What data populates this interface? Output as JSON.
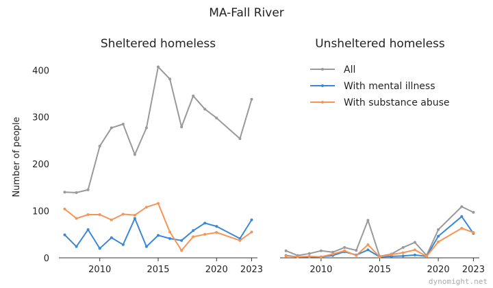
{
  "suptitle": "MA-Fall River",
  "watermark": "dynomight.net",
  "chart_data": [
    {
      "type": "line",
      "title": "Sheltered homeless",
      "xlabel": "",
      "ylabel": "Number of people",
      "xlim": [
        2006.5,
        2023.5
      ],
      "ylim": [
        0,
        415
      ],
      "xticks": [
        2010,
        2015,
        2020,
        2023
      ],
      "yticks": [
        0,
        100,
        200,
        300,
        400
      ],
      "grid": false,
      "x": [
        2007,
        2008,
        2009,
        2010,
        2011,
        2012,
        2013,
        2014,
        2015,
        2016,
        2017,
        2018,
        2019,
        2020,
        2022,
        2023
      ],
      "series": [
        {
          "name": "All",
          "color": "#999999",
          "values": [
            140,
            139,
            145,
            238,
            277,
            285,
            220,
            277,
            407,
            381,
            279,
            345,
            317,
            298,
            254,
            338
          ]
        },
        {
          "name": "With mental illness",
          "color": "#3a87d6",
          "values": [
            49,
            24,
            60,
            20,
            43,
            28,
            84,
            24,
            48,
            41,
            37,
            58,
            74,
            67,
            41,
            81
          ]
        },
        {
          "name": "With substance abuse",
          "color": "#f79454",
          "values": [
            104,
            84,
            92,
            92,
            81,
            93,
            91,
            108,
            116,
            55,
            16,
            45,
            50,
            54,
            37,
            55
          ]
        }
      ]
    },
    {
      "type": "line",
      "title": "Unsheltered homeless",
      "xlabel": "",
      "ylabel": "",
      "xlim": [
        2006.5,
        2023.5
      ],
      "ylim": [
        0,
        415
      ],
      "xticks": [
        2010,
        2015,
        2020,
        2023
      ],
      "grid": false,
      "legend": "top",
      "x": [
        2007,
        2008,
        2009,
        2010,
        2011,
        2012,
        2013,
        2014,
        2015,
        2016,
        2017,
        2018,
        2019,
        2020,
        2022,
        2023
      ],
      "series": [
        {
          "name": "All",
          "color": "#999999",
          "values": [
            15,
            5,
            9,
            15,
            12,
            22,
            16,
            80,
            3,
            8,
            22,
            33,
            5,
            60,
            109,
            97
          ]
        },
        {
          "name": "With mental illness",
          "color": "#3a87d6",
          "values": [
            5,
            2,
            2,
            2,
            5,
            13,
            6,
            17,
            2,
            3,
            4,
            6,
            3,
            46,
            88,
            52
          ]
        },
        {
          "name": "With substance abuse",
          "color": "#f79454",
          "values": [
            4,
            2,
            3,
            2,
            8,
            15,
            5,
            28,
            2,
            7,
            11,
            17,
            3,
            34,
            63,
            54
          ]
        }
      ]
    }
  ]
}
